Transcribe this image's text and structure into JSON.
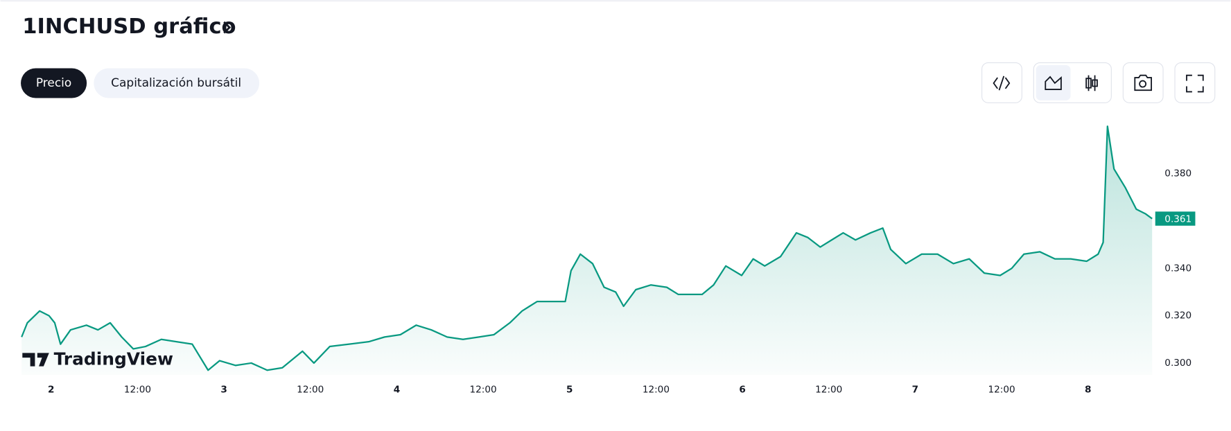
{
  "header": {
    "title": "1INCHUSD gráfico"
  },
  "tabs": [
    "Precio",
    "Capitalización bursátil"
  ],
  "watermark": "TradingView",
  "chart_data": {
    "type": "area",
    "color": "#089981",
    "x": [
      -4.1,
      -3.3,
      -1.6,
      -0.3,
      0.5,
      1.3,
      2.7,
      4.9,
      6.5,
      8.2,
      9.8,
      11.4,
      13.1,
      15.3,
      17.4,
      19.6,
      21.8,
      23.4,
      25.6,
      27.8,
      30.0,
      32.1,
      34.9,
      36.5,
      38.7,
      41.4,
      44.1,
      46.3,
      48.5,
      50.7,
      52.8,
      55.0,
      57.2,
      59.4,
      61.5,
      63.7,
      65.4,
      67.5,
      69.7,
      71.4,
      72.2,
      73.5,
      75.2,
      76.8,
      78.4,
      79.5,
      81.2,
      83.3,
      85.5,
      87.1,
      88.8,
      90.4,
      92.0,
      93.7,
      95.9,
      97.5,
      99.1,
      101.3,
      103.5,
      105.1,
      106.8,
      108.4,
      110.0,
      111.7,
      113.8,
      115.5,
      116.6,
      118.7,
      120.9,
      123.1,
      125.3,
      127.5,
      129.6,
      131.8,
      133.4,
      135.1,
      137.3,
      139.4,
      141.6,
      143.8,
      145.4,
      146.1,
      146.7,
      147.6,
      149.2,
      150.7,
      152.0,
      152.9
    ],
    "values": [
      0.311,
      0.317,
      0.322,
      0.32,
      0.317,
      0.308,
      0.314,
      0.316,
      0.314,
      0.317,
      0.311,
      0.306,
      0.307,
      0.31,
      0.309,
      0.308,
      0.297,
      0.301,
      0.299,
      0.3,
      0.297,
      0.298,
      0.305,
      0.3,
      0.307,
      0.308,
      0.309,
      0.311,
      0.312,
      0.316,
      0.314,
      0.311,
      0.31,
      0.311,
      0.312,
      0.317,
      0.322,
      0.326,
      0.326,
      0.326,
      0.339,
      0.346,
      0.342,
      0.332,
      0.33,
      0.324,
      0.331,
      0.333,
      0.332,
      0.329,
      0.329,
      0.329,
      0.333,
      0.341,
      0.337,
      0.344,
      0.341,
      0.345,
      0.355,
      0.353,
      0.349,
      0.352,
      0.355,
      0.352,
      0.355,
      0.357,
      0.348,
      0.342,
      0.346,
      0.346,
      0.342,
      0.344,
      0.338,
      0.337,
      0.34,
      0.346,
      0.347,
      0.344,
      0.344,
      0.343,
      0.346,
      0.351,
      0.4,
      0.382,
      0.374,
      0.365,
      0.363,
      0.361
    ],
    "xlim": [
      -4.1,
      152.9
    ],
    "ylim": [
      0.295,
      0.402
    ],
    "xticks": [
      {
        "value": 0,
        "label": "2"
      },
      {
        "value": 12,
        "label": "12:00"
      },
      {
        "value": 24,
        "label": "3"
      },
      {
        "value": 36,
        "label": "12:00"
      },
      {
        "value": 48,
        "label": "4"
      },
      {
        "value": 60,
        "label": "12:00"
      },
      {
        "value": 72,
        "label": "5"
      },
      {
        "value": 84,
        "label": "12:00"
      },
      {
        "value": 96,
        "label": "6"
      },
      {
        "value": 108,
        "label": "12:00"
      },
      {
        "value": 120,
        "label": "7"
      },
      {
        "value": 132,
        "label": "12:00"
      },
      {
        "value": 144,
        "label": "8"
      }
    ],
    "yticks": [
      {
        "value": 0.3,
        "label": "0.300"
      },
      {
        "value": 0.32,
        "label": "0.320"
      },
      {
        "value": 0.34,
        "label": "0.340"
      },
      {
        "value": 0.38,
        "label": "0.380"
      }
    ],
    "grid": false
  }
}
